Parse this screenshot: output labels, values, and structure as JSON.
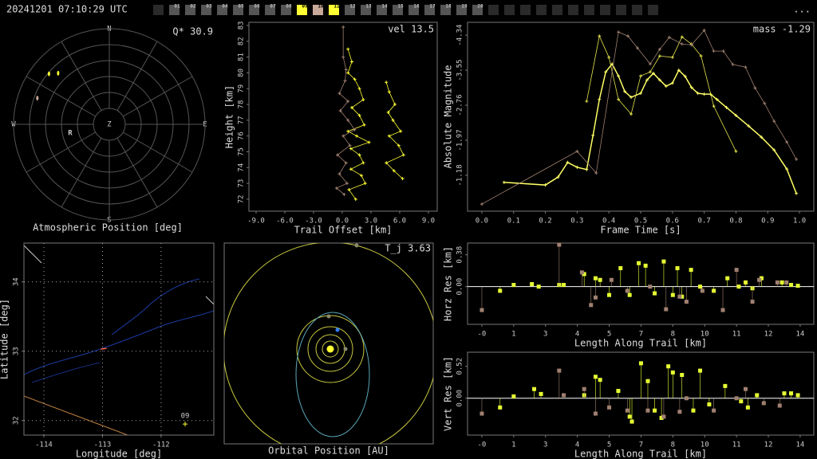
{
  "header": {
    "timestamp": "20241201 07:10:29 UTC",
    "menu": "...",
    "stations": [
      {
        "label": "01",
        "color": "#555555"
      },
      {
        "label": "02",
        "color": "#555555"
      },
      {
        "label": "03",
        "color": "#555555"
      },
      {
        "label": "04",
        "color": "#555555"
      },
      {
        "label": "05",
        "color": "#555555"
      },
      {
        "label": "06",
        "color": "#555555"
      },
      {
        "label": "07",
        "color": "#555555"
      },
      {
        "label": "08",
        "color": "#555555"
      },
      {
        "label": "09",
        "color": "#ffff33"
      },
      {
        "label": "10",
        "color": "#c8a898"
      },
      {
        "label": "11",
        "color": "#ffff33"
      },
      {
        "label": "12",
        "color": "#555555"
      },
      {
        "label": "13",
        "color": "#555555"
      },
      {
        "label": "14",
        "color": "#555555"
      },
      {
        "label": "15",
        "color": "#555555"
      },
      {
        "label": "16",
        "color": "#555555"
      },
      {
        "label": "17",
        "color": "#555555"
      },
      {
        "label": "18",
        "color": "#555555"
      },
      {
        "label": "19",
        "color": "#555555"
      },
      {
        "label": "20",
        "color": "#555555"
      }
    ]
  },
  "polar": {
    "title": "Atmospheric Position [deg]",
    "note": "Q* 30.9",
    "north": "N",
    "east": "E",
    "south": "S",
    "west": "W",
    "zenith": "Z",
    "radiant": "R",
    "zenlim": [
      0,
      90
    ],
    "series": [
      {
        "color": "#ffff33",
        "az": [
          310,
          315
        ],
        "zen": [
          74,
          68
        ]
      },
      {
        "color": "#c8a898",
        "az": [
          290
        ],
        "zen": [
          72
        ]
      }
    ]
  },
  "height": {
    "type": "line",
    "note": "vel 13.5",
    "xlabel": "Trail Offset [km]",
    "ylabel": "Height [km]",
    "xlim": [
      -9.75,
      9.92
    ],
    "ylim": [
      71.24,
      83.2
    ],
    "xticks": [
      {
        "value": -9,
        "label": "-9.0"
      },
      {
        "value": -6,
        "label": "-6.0"
      },
      {
        "value": -3,
        "label": "-3.0"
      },
      {
        "value": 0,
        "label": "0.0"
      },
      {
        "value": 3,
        "label": "3.0"
      },
      {
        "value": 6,
        "label": "6.0"
      },
      {
        "value": 9,
        "label": "9.0"
      }
    ],
    "yticks": [
      72,
      73,
      74,
      75,
      76,
      77,
      78,
      79,
      80,
      81,
      82,
      83
    ],
    "series": [
      {
        "color": "#ffff33",
        "x": [
          0.6,
          1.0,
          0.6,
          1.3,
          1.8,
          2.2,
          1.0,
          1.8,
          2.3,
          0.6,
          1.5,
          2.8,
          0.9,
          1.8,
          2.2,
          0.9,
          2.0,
          2.4,
          0.7,
          1.4
        ],
        "y": [
          81.5,
          80.7,
          80.0,
          79.6,
          79.0,
          78.3,
          77.8,
          77.3,
          76.7,
          76.3,
          76.0,
          75.6,
          75.2,
          74.8,
          74.3,
          73.9,
          73.5,
          73.0,
          72.6,
          72.0
        ]
      },
      {
        "color": "#ffff33",
        "x": [
          4.6,
          4.9,
          5.5,
          4.8,
          5.3,
          6.1,
          4.9,
          5.9,
          6.4,
          4.6,
          5.4,
          6.3
        ],
        "y": [
          79.4,
          78.8,
          78.0,
          77.5,
          77.0,
          76.3,
          76.0,
          75.4,
          74.8,
          74.3,
          73.8,
          73.3
        ]
      },
      {
        "color": "#a08070",
        "x": [
          0.1,
          0.1,
          0.4,
          0.3,
          -0.3,
          0.6,
          -0.2,
          0.6,
          1.3,
          0.1,
          0.8,
          -0.5,
          0.4,
          -0.3,
          0.5,
          -0.6,
          0.2
        ],
        "y": [
          82.9,
          81.0,
          80.2,
          79.5,
          78.7,
          78.2,
          77.6,
          77.0,
          76.4,
          76.0,
          75.4,
          74.8,
          74.3,
          73.6,
          73.0,
          72.7,
          72.3
        ]
      }
    ]
  },
  "magnitude": {
    "type": "line",
    "note": "mass -1.29",
    "xlabel": "Frame Time [s]",
    "ylabel": "Absolute Magnitude",
    "xlim": [
      -0.045,
      1.045
    ],
    "ylim": [
      -0.37,
      -4.63
    ],
    "xticks": [
      {
        "value": 0,
        "label": "0.0"
      },
      0.1,
      0.2,
      0.3,
      0.4,
      0.5,
      0.6,
      0.7,
      0.8,
      0.9,
      {
        "value": 1,
        "label": "1.0"
      }
    ],
    "yticks": [
      -4.34,
      -3.55,
      -2.76,
      -1.97,
      -1.18
    ],
    "series": [
      {
        "color": "#ffff66",
        "x": [
          0.07,
          0.2,
          0.24,
          0.27,
          0.3,
          0.33,
          0.35,
          0.37,
          0.39,
          0.41,
          0.43,
          0.45,
          0.47,
          0.5,
          0.52,
          0.54,
          0.56,
          0.58,
          0.6,
          0.62,
          0.64,
          0.66,
          0.68,
          0.7,
          0.72,
          0.74,
          0.77,
          0.8,
          0.84,
          0.88,
          0.92,
          0.96,
          0.99
        ],
        "y": [
          -1.02,
          -0.96,
          -1.14,
          -1.47,
          -1.36,
          -1.31,
          -2.08,
          -2.89,
          -3.51,
          -3.69,
          -3.42,
          -3.07,
          -2.94,
          -3.03,
          -3.33,
          -3.48,
          -3.33,
          -3.19,
          -3.26,
          -3.55,
          -3.41,
          -3.16,
          -3.03,
          -3.01,
          -3.01,
          -2.89,
          -2.71,
          -2.53,
          -2.29,
          -2.04,
          -1.75,
          -1.32,
          -0.77
        ]
      },
      {
        "color": "#e6e64d",
        "x": [
          0.33,
          0.37,
          0.4,
          0.43,
          0.47,
          0.5,
          0.53,
          0.56,
          0.6,
          0.63,
          0.66,
          0.69,
          0.73,
          0.8
        ],
        "y": [
          -2.85,
          -4.32,
          -3.84,
          -2.89,
          -2.56,
          -3.42,
          -3.51,
          -3.87,
          -3.84,
          -4.3,
          -4.14,
          -3.87,
          -2.74,
          -1.72
        ]
      },
      {
        "color": "#a08070",
        "x": [
          0.0,
          0.3,
          0.36,
          0.43,
          0.46,
          0.49,
          0.53,
          0.56,
          0.59,
          0.63,
          0.66,
          0.7,
          0.73,
          0.76,
          0.79,
          0.83,
          0.86,
          0.89,
          0.92,
          0.96,
          0.99
        ],
        "y": [
          -0.53,
          -1.72,
          -1.23,
          -4.41,
          -4.32,
          -4.05,
          -3.69,
          -4.02,
          -4.29,
          -4.14,
          -4.12,
          -4.45,
          -3.98,
          -3.98,
          -3.68,
          -3.62,
          -3.15,
          -2.8,
          -2.4,
          -1.93,
          -1.54
        ]
      }
    ]
  },
  "map": {
    "type": "map",
    "xlabel": "Longitude [deg]",
    "ylabel": "Latitude [deg]",
    "grid": true,
    "xlim": [
      -114.34,
      -111.1
    ],
    "ylim": [
      31.79,
      34.56
    ],
    "xticks": [
      -114,
      -113,
      -112
    ],
    "yticks": [
      32,
      33,
      34
    ],
    "trail": {
      "color": "#ff6040",
      "lon": [
        -113.03,
        -112.93
      ],
      "lat": [
        33.03,
        33.04
      ]
    },
    "station": {
      "label": "09",
      "color": "#ffff33",
      "lon": -111.59,
      "lat": 31.95
    }
  },
  "orbit": {
    "title": "Orbital Position [AU]",
    "note": "T_j 3.63"
  },
  "horz_res": {
    "type": "stem",
    "xlabel": "Length Along Trail [km]",
    "ylabel": "Horz Res [km]",
    "xlim": [
      -0.63,
      14.6
    ],
    "ylim": [
      -0.45,
      0.52
    ],
    "xticks": [
      {
        "value": 0,
        "label": "-0"
      },
      {
        "value": 1.4,
        "label": "1"
      },
      {
        "value": 2.8,
        "label": "3"
      },
      {
        "value": 4.2,
        "label": "4"
      },
      {
        "value": 5.6,
        "label": "5"
      },
      {
        "value": 7,
        "label": "7"
      },
      {
        "value": 8.4,
        "label": "8"
      },
      {
        "value": 9.8,
        "label": "10"
      },
      {
        "value": 11.2,
        "label": "11"
      },
      {
        "value": 12.6,
        "label": "12"
      },
      {
        "value": 14,
        "label": "14"
      }
    ],
    "yticks": [
      {
        "value": 0,
        "label": "0.00"
      },
      0.38
    ],
    "series": [
      {
        "color": "#e6ff33",
        "x": [
          0.8,
          1.4,
          2.2,
          2.5,
          3.4,
          3.6,
          4.5,
          5.0,
          5.2,
          5.6,
          6.1,
          6.5,
          6.9,
          7.2,
          7.6,
          8.0,
          8.4,
          8.6,
          8.8,
          9.2,
          9.6,
          10.2,
          10.8,
          11.3,
          11.6,
          11.9,
          12.3,
          13.2,
          13.6,
          13.9
        ],
        "y": [
          -0.05,
          0.02,
          0.03,
          0.0,
          0.02,
          0.02,
          0.15,
          0.1,
          0.08,
          -0.1,
          0.22,
          -0.1,
          0.28,
          0.25,
          -0.08,
          0.3,
          -0.1,
          0.22,
          -0.12,
          0.2,
          0.0,
          -0.05,
          0.1,
          0.0,
          0.05,
          -0.02,
          0.1,
          0.05,
          0.02,
          0.01
        ]
      },
      {
        "color": "#a08070",
        "x": [
          0.0,
          3.4,
          4.4,
          4.8,
          5.0,
          5.7,
          6.4,
          7.4,
          8.1,
          8.7,
          9.0,
          9.7,
          10.6,
          11.2,
          11.9,
          12.2,
          13.0,
          13.4
        ],
        "y": [
          -0.28,
          0.5,
          0.17,
          -0.22,
          -0.13,
          0.08,
          -0.05,
          0.0,
          -0.27,
          -0.12,
          -0.18,
          -0.05,
          -0.28,
          0.2,
          -0.18,
          0.08,
          0.05,
          0.05
        ]
      }
    ]
  },
  "vert_res": {
    "type": "stem",
    "xlabel": "Length Along Trail [km]",
    "ylabel": "Vert Res [km]",
    "xlim": [
      -0.63,
      14.6
    ],
    "ylim": [
      -0.6,
      0.75
    ],
    "xticks": [
      {
        "value": 0,
        "label": "-0"
      },
      {
        "value": 1.4,
        "label": "1"
      },
      {
        "value": 2.8,
        "label": "3"
      },
      {
        "value": 4.2,
        "label": "4"
      },
      {
        "value": 5.6,
        "label": "5"
      },
      {
        "value": 7,
        "label": "7"
      },
      {
        "value": 8.4,
        "label": "8"
      },
      {
        "value": 9.8,
        "label": "10"
      },
      {
        "value": 11.2,
        "label": "11"
      },
      {
        "value": 12.6,
        "label": "12"
      },
      {
        "value": 14,
        "label": "14"
      }
    ],
    "yticks": [
      {
        "value": 0,
        "label": "0.00"
      },
      0.52
    ],
    "series": [
      {
        "color": "#e6ff33",
        "x": [
          0.8,
          1.4,
          2.3,
          2.6,
          4.5,
          5.0,
          5.2,
          6.0,
          6.5,
          6.6,
          7.0,
          7.3,
          7.6,
          7.9,
          8.2,
          8.4,
          8.8,
          9.3,
          9.6,
          10.0,
          10.7,
          11.4,
          11.7,
          12.1,
          13.3,
          13.6,
          13.9
        ],
        "y": [
          -0.15,
          0.03,
          0.15,
          0.07,
          0.05,
          0.35,
          0.3,
          0.12,
          -0.3,
          -0.38,
          0.57,
          0.28,
          -0.2,
          -0.32,
          0.52,
          0.42,
          0.38,
          -0.2,
          0.45,
          -0.1,
          0.2,
          -0.05,
          -0.15,
          0.05,
          0.08,
          0.08,
          0.05
        ]
      },
      {
        "color": "#a08070",
        "x": [
          0.0,
          3.4,
          3.6,
          4.5,
          5.0,
          5.6,
          6.4,
          7.3,
          8.0,
          8.7,
          9.0,
          10.2,
          11.2,
          11.6,
          12.4,
          13.1
        ],
        "y": [
          -0.25,
          0.45,
          0.05,
          0.15,
          -0.25,
          -0.15,
          -0.2,
          -0.2,
          -0.3,
          -0.22,
          0.0,
          -0.2,
          0.0,
          0.15,
          -0.08,
          -0.12
        ]
      }
    ]
  }
}
